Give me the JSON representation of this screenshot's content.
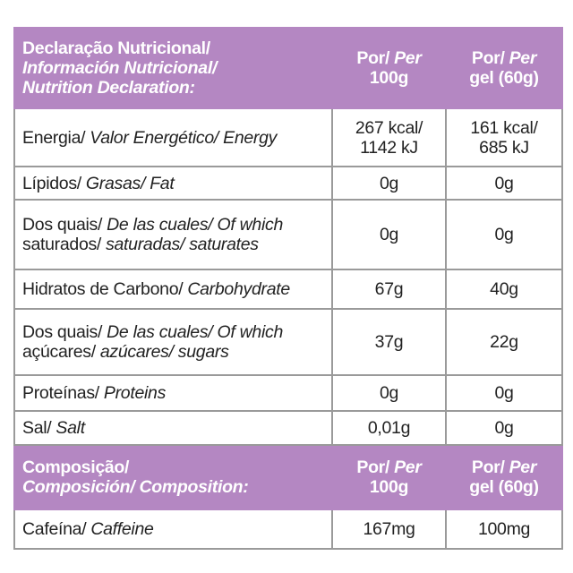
{
  "nutrition_table": {
    "sections": [
      {
        "header": {
          "label": [
            [
              {
                "text": "Declaração Nutricional/",
                "italic": false
              }
            ],
            [
              {
                "text": "Información Nutricional/",
                "italic": true
              }
            ],
            [
              {
                "text": "Nutrition Declaration:",
                "italic": true
              }
            ]
          ],
          "columns": [
            [
              [
                {
                  "text": "Por/",
                  "italic": false
                },
                {
                  "text": "Per",
                  "italic": true
                }
              ],
              [
                {
                  "text": "100g",
                  "italic": false
                }
              ]
            ],
            [
              [
                {
                  "text": "Por/",
                  "italic": false
                },
                {
                  "text": "Per",
                  "italic": true
                }
              ],
              [
                {
                  "text": "gel (60g)",
                  "italic": false
                }
              ]
            ]
          ]
        },
        "rows": [
          {
            "label": [
              [
                {
                  "text": "Energia/",
                  "italic": false
                },
                {
                  "text": "Valor Energético/ Energy",
                  "italic": true
                }
              ]
            ],
            "values": [
              [
                "267 kcal/",
                "1142 kJ"
              ],
              [
                "161 kcal/",
                "685 kJ"
              ]
            ]
          },
          {
            "label": [
              [
                {
                  "text": "Lípidos/",
                  "italic": false
                },
                {
                  "text": "Grasas/ Fat",
                  "italic": true
                }
              ]
            ],
            "values": [
              [
                "0g"
              ],
              [
                "0g"
              ]
            ]
          },
          {
            "label": [
              [
                {
                  "text": "Dos quais/",
                  "italic": false
                },
                {
                  "text": "De las cuales/ Of which",
                  "italic": true
                }
              ],
              [
                {
                  "text": "saturados/",
                  "italic": false
                },
                {
                  "text": "saturadas/ saturates",
                  "italic": true
                }
              ]
            ],
            "values": [
              [
                "0g"
              ],
              [
                "0g"
              ]
            ]
          },
          {
            "label": [
              [
                {
                  "text": "Hidratos de Carbono/",
                  "italic": false
                },
                {
                  "text": "Carbohydrate",
                  "italic": true
                }
              ]
            ],
            "values": [
              [
                "67g"
              ],
              [
                "40g"
              ]
            ]
          },
          {
            "label": [
              [
                {
                  "text": "Dos quais/",
                  "italic": false
                },
                {
                  "text": "De las cuales/ Of which",
                  "italic": true
                }
              ],
              [
                {
                  "text": "açúcares/",
                  "italic": false
                },
                {
                  "text": "azúcares/ sugars",
                  "italic": true
                }
              ]
            ],
            "values": [
              [
                "37g"
              ],
              [
                "22g"
              ]
            ]
          },
          {
            "label": [
              [
                {
                  "text": "Proteínas/",
                  "italic": false
                },
                {
                  "text": "Proteins",
                  "italic": true
                }
              ]
            ],
            "values": [
              [
                "0g"
              ],
              [
                "0g"
              ]
            ]
          },
          {
            "label": [
              [
                {
                  "text": "Sal/",
                  "italic": false
                },
                {
                  "text": "Salt",
                  "italic": true
                }
              ]
            ],
            "values": [
              [
                "0,01g"
              ],
              [
                "0g"
              ]
            ]
          }
        ]
      },
      {
        "header": {
          "label": [
            [
              {
                "text": "Composição/",
                "italic": false
              }
            ],
            [
              {
                "text": "Composición/ Composition:",
                "italic": true
              }
            ]
          ],
          "columns": [
            [
              [
                {
                  "text": "Por/",
                  "italic": false
                },
                {
                  "text": "Per",
                  "italic": true
                }
              ],
              [
                {
                  "text": "100g",
                  "italic": false
                }
              ]
            ],
            [
              [
                {
                  "text": "Por/",
                  "italic": false
                },
                {
                  "text": "Per",
                  "italic": true
                }
              ],
              [
                {
                  "text": "gel (60g)",
                  "italic": false
                }
              ]
            ]
          ]
        },
        "rows": [
          {
            "label": [
              [
                {
                  "text": "Cafeína/",
                  "italic": false
                },
                {
                  "text": "Caffeine",
                  "italic": true
                }
              ]
            ],
            "values": [
              [
                "167mg"
              ],
              [
                "100mg"
              ]
            ]
          }
        ]
      }
    ]
  }
}
